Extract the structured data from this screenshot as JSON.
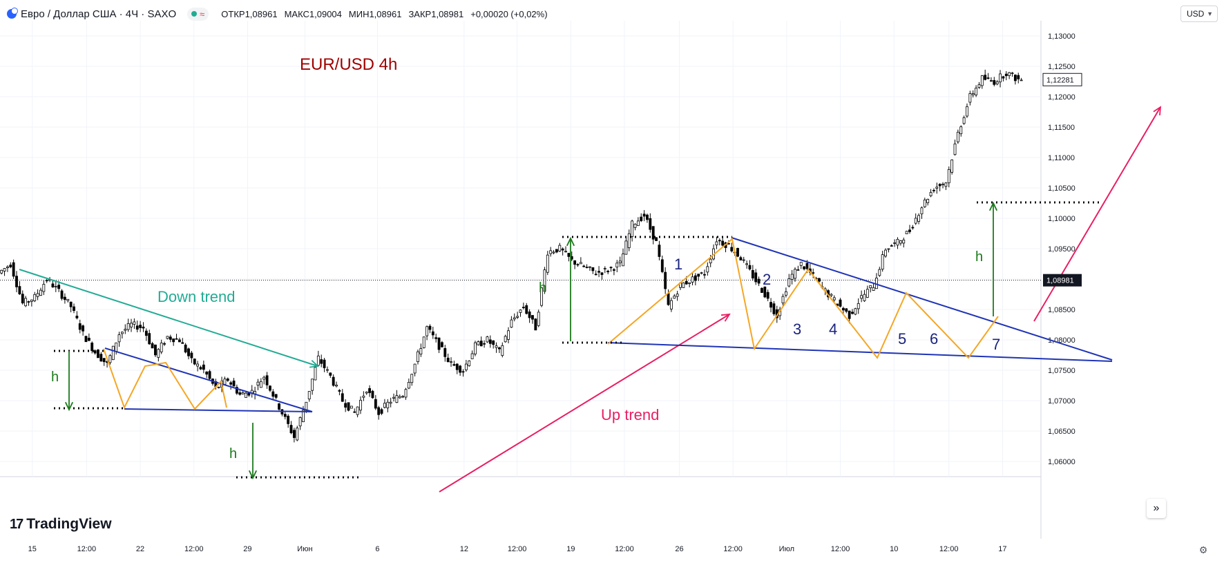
{
  "header": {
    "title": "Евро / Доллар США · 4Ч · SAXO",
    "status_icon": "wave-icon",
    "ohlc": [
      {
        "label": "ОТКР",
        "value": "1,08961"
      },
      {
        "label": "МАКС",
        "value": "1,09004"
      },
      {
        "label": "МИН",
        "value": "1,08961"
      },
      {
        "label": "ЗАКР",
        "value": "1,08981"
      },
      {
        "label": "",
        "value": "+0,00020 (+0,02%)"
      }
    ]
  },
  "currency": "USD",
  "logo": {
    "mark": "17",
    "text": "TradingView"
  },
  "colors": {
    "up_candle": "#ffffff",
    "down_candle": "#000000",
    "trend_down": "#22ab94",
    "trend_up": "#e91e63",
    "channel": "#1f34b5",
    "zigzag": "#f5a623",
    "target": "#1b7a1b",
    "title": "#a00000",
    "price_badge": "#131722"
  },
  "chart_data": {
    "type": "candlestick",
    "title": "EUR/USD 4h",
    "ylim": [
      1.0575,
      1.1325
    ],
    "y_ticks": [
      "1,13000",
      "1,12500",
      "1,12000",
      "1,11500",
      "1,11000",
      "1,10500",
      "1,10000",
      "1,09500",
      "1,09000",
      "1,08500",
      "1,08000",
      "1,07500",
      "1,07000",
      "1,06500",
      "1,06000"
    ],
    "x_ticks": [
      "15",
      "12:00",
      "22",
      "12:00",
      "29",
      "Июн",
      "6",
      "12",
      "12:00",
      "19",
      "12:00",
      "26",
      "12:00",
      "Июл",
      "12:00",
      "10",
      "12:00",
      "17"
    ],
    "current_price": "1,08981",
    "last_price": "1,12281",
    "grid": true,
    "price_path": [
      [
        0,
        1.091
      ],
      [
        4,
        1.0925
      ],
      [
        8,
        1.086
      ],
      [
        12,
        1.087
      ],
      [
        16,
        1.09
      ],
      [
        20,
        1.088
      ],
      [
        24,
        1.0855
      ],
      [
        28,
        1.081
      ],
      [
        32,
        1.078
      ],
      [
        36,
        1.076
      ],
      [
        40,
        1.081
      ],
      [
        44,
        1.0825
      ],
      [
        48,
        1.082
      ],
      [
        52,
        1.0775
      ],
      [
        56,
        1.0805
      ],
      [
        60,
        1.08
      ],
      [
        64,
        1.0765
      ],
      [
        68,
        1.075
      ],
      [
        72,
        1.072
      ],
      [
        76,
        1.0735
      ],
      [
        80,
        1.071
      ],
      [
        84,
        1.0715
      ],
      [
        88,
        1.074
      ],
      [
        92,
        1.07
      ],
      [
        96,
        1.066
      ],
      [
        98,
        1.064
      ],
      [
        102,
        1.07
      ],
      [
        106,
        1.077
      ],
      [
        110,
        1.074
      ],
      [
        114,
        1.07
      ],
      [
        118,
        1.068
      ],
      [
        122,
        1.072
      ],
      [
        126,
        1.068
      ],
      [
        130,
        1.07
      ],
      [
        134,
        1.071
      ],
      [
        138,
        1.076
      ],
      [
        142,
        1.082
      ],
      [
        146,
        1.079
      ],
      [
        150,
        1.076
      ],
      [
        154,
        1.075
      ],
      [
        158,
        1.079
      ],
      [
        162,
        1.08
      ],
      [
        166,
        1.078
      ],
      [
        170,
        1.083
      ],
      [
        174,
        1.0855
      ],
      [
        178,
        1.082
      ],
      [
        182,
        1.0945
      ],
      [
        186,
        1.095
      ],
      [
        190,
        1.093
      ],
      [
        194,
        1.092
      ],
      [
        198,
        1.091
      ],
      [
        202,
        1.0915
      ],
      [
        206,
        1.0925
      ],
      [
        210,
        1.099
      ],
      [
        214,
        1.1005
      ],
      [
        218,
        1.096
      ],
      [
        222,
        1.0855
      ],
      [
        226,
        1.089
      ],
      [
        230,
        1.09
      ],
      [
        234,
        1.091
      ],
      [
        238,
        1.0965
      ],
      [
        242,
        1.0955
      ],
      [
        246,
        1.0935
      ],
      [
        250,
        1.0905
      ],
      [
        254,
        1.0875
      ],
      [
        258,
        1.084
      ],
      [
        262,
        1.09
      ],
      [
        266,
        1.0925
      ],
      [
        270,
        1.0905
      ],
      [
        274,
        1.088
      ],
      [
        278,
        1.086
      ],
      [
        282,
        1.084
      ],
      [
        286,
        1.087
      ],
      [
        290,
        1.089
      ],
      [
        294,
        1.095
      ],
      [
        298,
        1.096
      ],
      [
        302,
        1.098
      ],
      [
        306,
        1.102
      ],
      [
        310,
        1.105
      ],
      [
        314,
        1.106
      ],
      [
        318,
        1.114
      ],
      [
        322,
        1.12
      ],
      [
        326,
        1.123
      ],
      [
        330,
        1.1225
      ],
      [
        334,
        1.124
      ],
      [
        338,
        1.1228
      ]
    ],
    "annotations": [
      {
        "text": "EUR/USD 4h",
        "kind": "title"
      },
      {
        "text": "Down trend",
        "kind": "trend-label"
      },
      {
        "text": "Up trend",
        "kind": "trend-label"
      },
      {
        "text": "h",
        "kind": "height-label"
      },
      {
        "text": "1",
        "kind": "wave"
      },
      {
        "text": "2",
        "kind": "wave"
      },
      {
        "text": "3",
        "kind": "wave"
      },
      {
        "text": "4",
        "kind": "wave"
      },
      {
        "text": "5",
        "kind": "wave"
      },
      {
        "text": "6",
        "kind": "wave"
      },
      {
        "text": "7",
        "kind": "wave"
      }
    ]
  }
}
